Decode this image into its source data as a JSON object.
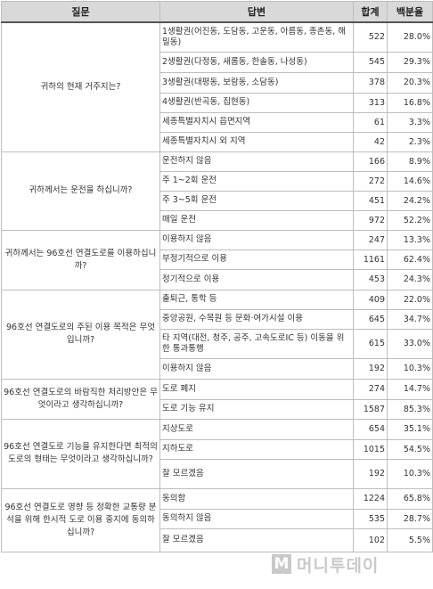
{
  "headers": {
    "question": "질문",
    "answer": "답변",
    "total": "합계",
    "percent": "백분율"
  },
  "questions": [
    {
      "question": "귀하의 현재 거주지는?",
      "answers": [
        {
          "answer": "1생활권(어진동, 도담동, 고운동, 아름동, 종촌동, 해밀동)",
          "total": "522",
          "percent": "28.0%"
        },
        {
          "answer": "2생활권(다정동, 새롬동, 한솔동, 나성동)",
          "total": "545",
          "percent": "29.3%"
        },
        {
          "answer": "3생활권(대평동, 보람동, 소담동)",
          "total": "378",
          "percent": "20.3%"
        },
        {
          "answer": "4생활권(반곡동, 집현동)",
          "total": "313",
          "percent": "16.8%"
        },
        {
          "answer": "세종특별자치시 읍면지역",
          "total": "61",
          "percent": "3.3%"
        },
        {
          "answer": "세종특별자치시 외 지역",
          "total": "42",
          "percent": "2.3%"
        }
      ]
    },
    {
      "question": "귀하께서는 운전을 하십니까?",
      "answers": [
        {
          "answer": "운전하지 않음",
          "total": "166",
          "percent": "8.9%"
        },
        {
          "answer": "주 1~2회 운전",
          "total": "272",
          "percent": "14.6%"
        },
        {
          "answer": "주 3~5회 운전",
          "total": "451",
          "percent": "24.2%"
        },
        {
          "answer": "매일 운전",
          "total": "972",
          "percent": "52.2%"
        }
      ]
    },
    {
      "question": "귀하께서는 96호선 연결도로를 이용하십니까?",
      "answers": [
        {
          "answer": "이용하지 않음",
          "total": "247",
          "percent": "13.3%"
        },
        {
          "answer": "부정기적으로 이용",
          "total": "1161",
          "percent": "62.4%"
        },
        {
          "answer": "정기적으로 이용",
          "total": "453",
          "percent": "24.3%"
        }
      ]
    },
    {
      "question": "96호선 연결도로의 주된 이용 목적은 무엇입니까?",
      "answers": [
        {
          "answer": "출퇴근, 통학 등",
          "total": "409",
          "percent": "22.0%"
        },
        {
          "answer": "중앙공원, 수목원 등 문화·여가시설 이용",
          "total": "645",
          "percent": "34.7%"
        },
        {
          "answer": "타 지역(대전, 청주, 공주, 고속도로IC 등) 이동을 위한 통과통행",
          "total": "615",
          "percent": "33.0%"
        },
        {
          "answer": "이용하지 않음",
          "total": "192",
          "percent": "10.3%"
        }
      ]
    },
    {
      "question": "96호선 연결도로의 바람직한 처리방안은 무엇이라고 생각하십니까?",
      "answers": [
        {
          "answer": "도로 폐지",
          "total": "274",
          "percent": "14.7%"
        },
        {
          "answer": "도로 기능 유지",
          "total": "1587",
          "percent": "85.3%"
        }
      ]
    },
    {
      "question": "96호선 연결도로 기능을 유지한다면 최적의 도로의 형태는 무엇이라고 생각하십니까?",
      "answers": [
        {
          "answer": "지상도로",
          "total": "654",
          "percent": "35.1%"
        },
        {
          "answer": "지하도로",
          "total": "1015",
          "percent": "54.5%"
        },
        {
          "answer": "잘 모르겠음",
          "total": "192",
          "percent": "10.3%"
        }
      ]
    },
    {
      "question": "96호선 연결도로 영향 등 정확한 교통량 분석을 위해 한시적 도로 이용 중지에 동의하십니까?",
      "answers": [
        {
          "answer": "동의함",
          "total": "1224",
          "percent": "65.8%"
        },
        {
          "answer": "동의하지 않음",
          "total": "535",
          "percent": "28.7%"
        },
        {
          "answer": "잘 모르겠음",
          "total": "102",
          "percent": "5.5%"
        }
      ]
    }
  ],
  "watermark": {
    "logo": "M",
    "text": "머니투데이"
  }
}
